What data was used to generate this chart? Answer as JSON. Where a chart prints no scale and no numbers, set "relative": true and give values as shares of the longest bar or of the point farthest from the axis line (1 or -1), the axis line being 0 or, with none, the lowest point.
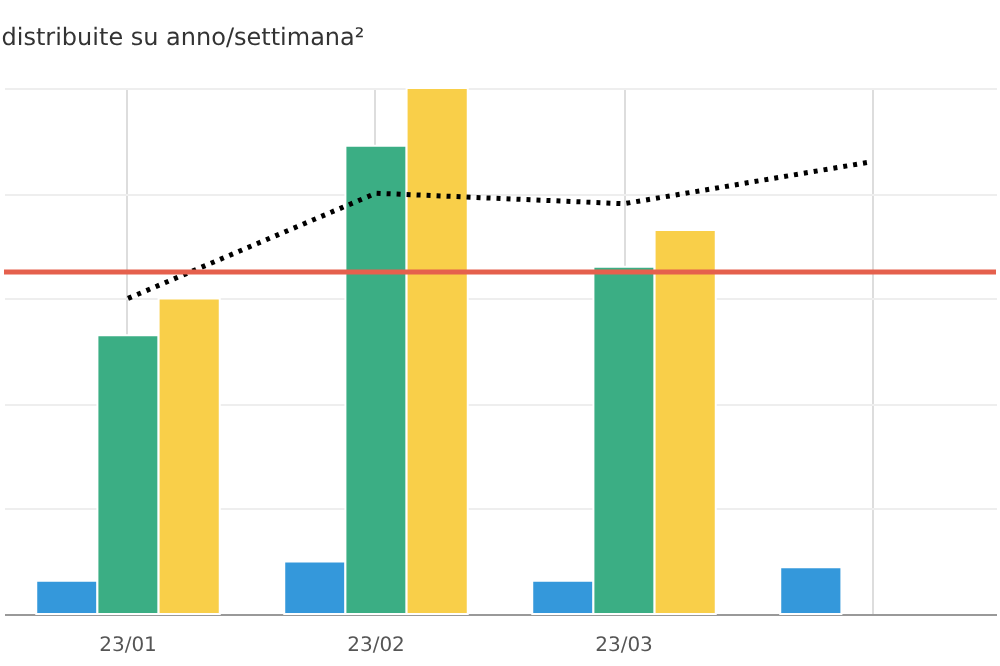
{
  "chart_data": {
    "type": "bar",
    "title": "distribuite su anno/settimana²",
    "relative": true,
    "categories": [
      "23/01",
      "23/02",
      "23/03",
      null
    ],
    "series": [
      {
        "color": "#3498db",
        "values": [
          0.063,
          0.1,
          0.063,
          0.089
        ]
      },
      {
        "color": "#3bae84",
        "values": [
          0.53,
          0.89,
          0.66,
          null
        ]
      },
      {
        "color": "#f9cf49",
        "values": [
          0.6,
          1.0,
          0.73,
          null
        ]
      },
      {
        "type": "line",
        "color": "#000000",
        "line_style": "dotted",
        "marker": "none",
        "values": [
          0.6,
          0.8,
          0.78,
          0.86
        ]
      }
    ],
    "ref_lines": [
      {
        "axis": "y",
        "value": 0.65,
        "color": "#e5604d"
      }
    ],
    "grid": true,
    "legend": false
  }
}
